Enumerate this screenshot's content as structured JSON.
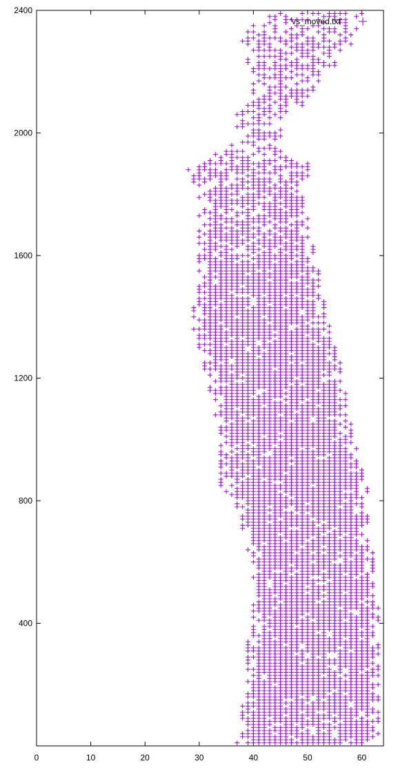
{
  "chart_data": {
    "type": "scatter",
    "title": "",
    "xlabel": "",
    "ylabel": "",
    "xlim": [
      0,
      64
    ],
    "ylim": [
      0,
      2400
    ],
    "xticks": [
      0,
      10,
      20,
      30,
      40,
      50,
      60
    ],
    "yticks": [
      400,
      800,
      1200,
      1600,
      2000,
      2400
    ],
    "grid": false,
    "legend_position": "top-right",
    "series": [
      {
        "name": "'vs_moved.txt'",
        "marker": "plus",
        "color": "#9400d3",
        "band": {
          "y_step": 10,
          "x_step": 1,
          "edges": [
            {
              "y": 0,
              "x_min": 37,
              "x_max": 63
            },
            {
              "y": 200,
              "x_min": 39,
              "x_max": 63
            },
            {
              "y": 300,
              "x_min": 39,
              "x_max": 63
            },
            {
              "y": 400,
              "x_min": 40,
              "x_max": 63
            },
            {
              "y": 600,
              "x_min": 40,
              "x_max": 62
            },
            {
              "y": 800,
              "x_min": 37,
              "x_max": 60
            },
            {
              "y": 850,
              "x_min": 34,
              "x_max": 61
            },
            {
              "y": 1000,
              "x_min": 34,
              "x_max": 58
            },
            {
              "y": 1200,
              "x_min": 32,
              "x_max": 56
            },
            {
              "y": 1300,
              "x_min": 30,
              "x_max": 55
            },
            {
              "y": 1400,
              "x_min": 29,
              "x_max": 53
            },
            {
              "y": 1500,
              "x_min": 30,
              "x_max": 52
            },
            {
              "y": 1600,
              "x_min": 30,
              "x_max": 51
            },
            {
              "y": 1800,
              "x_min": 30,
              "x_max": 49
            },
            {
              "y": 1900,
              "x_min": 28,
              "x_max": 50
            },
            {
              "y": 1950,
              "x_min": 36,
              "x_max": 44
            },
            {
              "y": 2050,
              "x_min": 36,
              "x_max": 46
            },
            {
              "y": 2100,
              "x_min": 40,
              "x_max": 50
            },
            {
              "y": 2200,
              "x_min": 40,
              "x_max": 54
            },
            {
              "y": 2300,
              "x_min": 38,
              "x_max": 58
            },
            {
              "y": 2400,
              "x_min": 42,
              "x_max": 60
            }
          ]
        }
      }
    ]
  },
  "style": {
    "marker_color": "#9400d3",
    "axis_color": "#000000",
    "background": "#ffffff"
  }
}
